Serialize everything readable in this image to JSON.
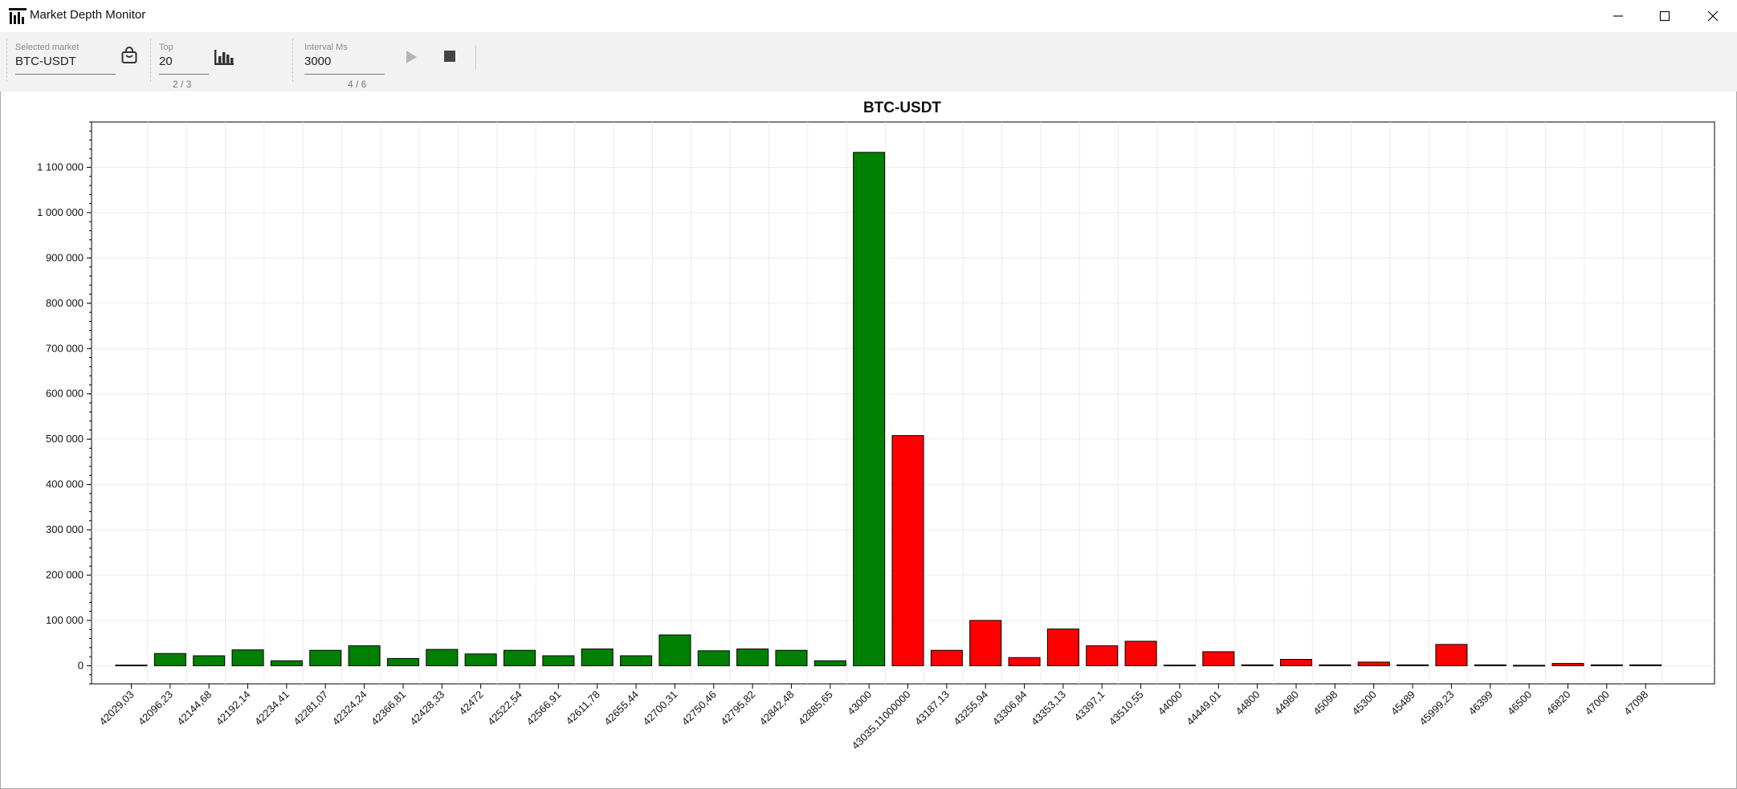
{
  "window": {
    "title": "Market Depth Monitor",
    "icons": [
      "app-chart-icon",
      "minimize-icon",
      "maximize-icon",
      "close-icon"
    ]
  },
  "toolbar": {
    "market": {
      "caption": "Selected market",
      "value": "BTC-USDT",
      "icon": "shopping-bag-icon"
    },
    "top": {
      "caption": "Top",
      "value": "20",
      "counter": "2 / 3",
      "icon": "bar-chart-icon"
    },
    "interval": {
      "caption": "Interval Ms",
      "value": "3000",
      "counter": "4 / 6"
    },
    "play_icon": "play-icon",
    "stop_icon": "stop-icon"
  },
  "colors": {
    "bid": "#008000",
    "ask": "#ff0000",
    "bar_outline": "#000000"
  },
  "chart_data": {
    "type": "bar",
    "title": "BTC-USDT",
    "xlabel": "",
    "ylabel": "",
    "ylim": [
      -40000,
      1200000
    ],
    "yticks": [
      0,
      100000,
      200000,
      300000,
      400000,
      500000,
      600000,
      700000,
      800000,
      900000,
      1000000,
      1100000
    ],
    "ytick_labels": [
      "0",
      "100 000",
      "200 000",
      "300 000",
      "400 000",
      "500 000",
      "600 000",
      "700 000",
      "800 000",
      "900 000",
      "1 000 000",
      "1 100 000"
    ],
    "grid": true,
    "categories": [
      "42029,03",
      "42096,23",
      "42144,68",
      "42192,14",
      "42234,41",
      "42281,07",
      "42324,24",
      "42366,81",
      "42428,33",
      "42472",
      "42522,54",
      "42566,91",
      "42611,78",
      "42655,44",
      "42700,31",
      "42750,46",
      "42795,82",
      "42842,48",
      "42885,65",
      "43000",
      "43035,11000000",
      "43187,13",
      "43255,94",
      "43306,84",
      "43353,13",
      "43397,1",
      "43510,55",
      "44000",
      "44449,01",
      "44800",
      "44980",
      "45098",
      "45300",
      "45489",
      "45999,23",
      "46399",
      "46500",
      "46820",
      "47000",
      "47098"
    ],
    "values": [
      1500,
      27000,
      22000,
      35000,
      11000,
      34000,
      44000,
      16000,
      36000,
      26000,
      34000,
      22000,
      37000,
      22000,
      68000,
      33000,
      37000,
      34000,
      11000,
      1133000,
      508000,
      34000,
      100000,
      18000,
      81000,
      44000,
      54000,
      1500,
      31000,
      2000,
      14000,
      2000,
      8000,
      2000,
      47000,
      2000,
      1000,
      5000,
      2000,
      2000
    ],
    "sides": [
      "bid",
      "bid",
      "bid",
      "bid",
      "bid",
      "bid",
      "bid",
      "bid",
      "bid",
      "bid",
      "bid",
      "bid",
      "bid",
      "bid",
      "bid",
      "bid",
      "bid",
      "bid",
      "bid",
      "bid",
      "ask",
      "ask",
      "ask",
      "ask",
      "ask",
      "ask",
      "ask",
      "ask",
      "ask",
      "ask",
      "ask",
      "ask",
      "ask",
      "ask",
      "ask",
      "ask",
      "ask",
      "ask",
      "ask",
      "ask"
    ]
  }
}
